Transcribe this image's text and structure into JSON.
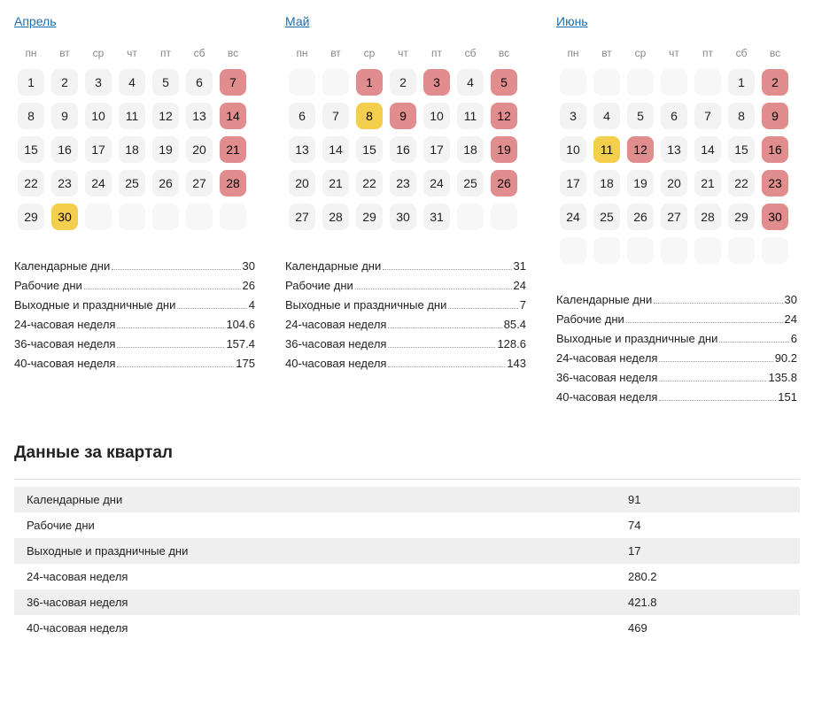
{
  "dow": [
    "пн",
    "вт",
    "ср",
    "чт",
    "пт",
    "сб",
    "вс"
  ],
  "months": [
    {
      "name": "Апрель",
      "startDow": 0,
      "totalCells": 35,
      "days": [
        {
          "d": 1
        },
        {
          "d": 2
        },
        {
          "d": 3
        },
        {
          "d": 4
        },
        {
          "d": 5
        },
        {
          "d": 6
        },
        {
          "d": 7,
          "t": "weekend"
        },
        {
          "d": 8
        },
        {
          "d": 9
        },
        {
          "d": 10
        },
        {
          "d": 11
        },
        {
          "d": 12
        },
        {
          "d": 13
        },
        {
          "d": 14,
          "t": "weekend"
        },
        {
          "d": 15
        },
        {
          "d": 16
        },
        {
          "d": 17
        },
        {
          "d": 18
        },
        {
          "d": 19
        },
        {
          "d": 20
        },
        {
          "d": 21,
          "t": "weekend"
        },
        {
          "d": 22
        },
        {
          "d": 23
        },
        {
          "d": 24
        },
        {
          "d": 25
        },
        {
          "d": 26
        },
        {
          "d": 27
        },
        {
          "d": 28,
          "t": "weekend"
        },
        {
          "d": 29
        },
        {
          "d": 30,
          "t": "pre"
        }
      ],
      "stats": [
        {
          "label": "Календарные дни",
          "value": "30"
        },
        {
          "label": "Рабочие дни",
          "value": "26"
        },
        {
          "label": "Выходные и праздничные дни",
          "value": "4"
        },
        {
          "label": "24-часовая неделя",
          "value": "104.6"
        },
        {
          "label": "36-часовая неделя",
          "value": "157.4"
        },
        {
          "label": "40-часовая неделя",
          "value": "175"
        }
      ]
    },
    {
      "name": "Май",
      "startDow": 2,
      "totalCells": 35,
      "days": [
        {
          "d": 1,
          "t": "holiday"
        },
        {
          "d": 2
        },
        {
          "d": 3,
          "t": "holiday"
        },
        {
          "d": 4
        },
        {
          "d": 5,
          "t": "weekend"
        },
        {
          "d": 6
        },
        {
          "d": 7
        },
        {
          "d": 8,
          "t": "pre"
        },
        {
          "d": 9,
          "t": "holiday"
        },
        {
          "d": 10
        },
        {
          "d": 11
        },
        {
          "d": 12,
          "t": "weekend"
        },
        {
          "d": 13
        },
        {
          "d": 14
        },
        {
          "d": 15
        },
        {
          "d": 16
        },
        {
          "d": 17
        },
        {
          "d": 18
        },
        {
          "d": 19,
          "t": "weekend"
        },
        {
          "d": 20
        },
        {
          "d": 21
        },
        {
          "d": 22
        },
        {
          "d": 23
        },
        {
          "d": 24
        },
        {
          "d": 25
        },
        {
          "d": 26,
          "t": "weekend"
        },
        {
          "d": 27
        },
        {
          "d": 28
        },
        {
          "d": 29
        },
        {
          "d": 30
        },
        {
          "d": 31
        }
      ],
      "stats": [
        {
          "label": "Календарные дни",
          "value": "31"
        },
        {
          "label": "Рабочие дни",
          "value": "24"
        },
        {
          "label": "Выходные и праздничные дни",
          "value": "7"
        },
        {
          "label": "24-часовая неделя",
          "value": "85.4"
        },
        {
          "label": "36-часовая неделя",
          "value": "128.6"
        },
        {
          "label": "40-часовая неделя",
          "value": "143"
        }
      ]
    },
    {
      "name": "Июнь",
      "startDow": 5,
      "totalCells": 42,
      "days": [
        {
          "d": 1
        },
        {
          "d": 2,
          "t": "weekend"
        },
        {
          "d": 3
        },
        {
          "d": 4
        },
        {
          "d": 5
        },
        {
          "d": 6
        },
        {
          "d": 7
        },
        {
          "d": 8
        },
        {
          "d": 9,
          "t": "weekend"
        },
        {
          "d": 10
        },
        {
          "d": 11,
          "t": "pre"
        },
        {
          "d": 12,
          "t": "holiday"
        },
        {
          "d": 13
        },
        {
          "d": 14
        },
        {
          "d": 15
        },
        {
          "d": 16,
          "t": "weekend"
        },
        {
          "d": 17
        },
        {
          "d": 18
        },
        {
          "d": 19
        },
        {
          "d": 20
        },
        {
          "d": 21
        },
        {
          "d": 22
        },
        {
          "d": 23,
          "t": "weekend"
        },
        {
          "d": 24
        },
        {
          "d": 25
        },
        {
          "d": 26
        },
        {
          "d": 27
        },
        {
          "d": 28
        },
        {
          "d": 29
        },
        {
          "d": 30,
          "t": "weekend"
        }
      ],
      "stats": [
        {
          "label": "Календарные дни",
          "value": "30"
        },
        {
          "label": "Рабочие дни",
          "value": "24"
        },
        {
          "label": "Выходные и праздничные дни",
          "value": "6"
        },
        {
          "label": "24-часовая неделя",
          "value": "90.2"
        },
        {
          "label": "36-часовая неделя",
          "value": "135.8"
        },
        {
          "label": "40-часовая неделя",
          "value": "151"
        }
      ]
    }
  ],
  "quarter": {
    "heading": "Данные за квартал",
    "rows": [
      {
        "label": "Календарные дни",
        "value": "91"
      },
      {
        "label": "Рабочие дни",
        "value": "74"
      },
      {
        "label": "Выходные и праздничные дни",
        "value": "17"
      },
      {
        "label": "24-часовая неделя",
        "value": "280.2"
      },
      {
        "label": "36-часовая неделя",
        "value": "421.8"
      },
      {
        "label": "40-часовая неделя",
        "value": "469"
      }
    ]
  }
}
